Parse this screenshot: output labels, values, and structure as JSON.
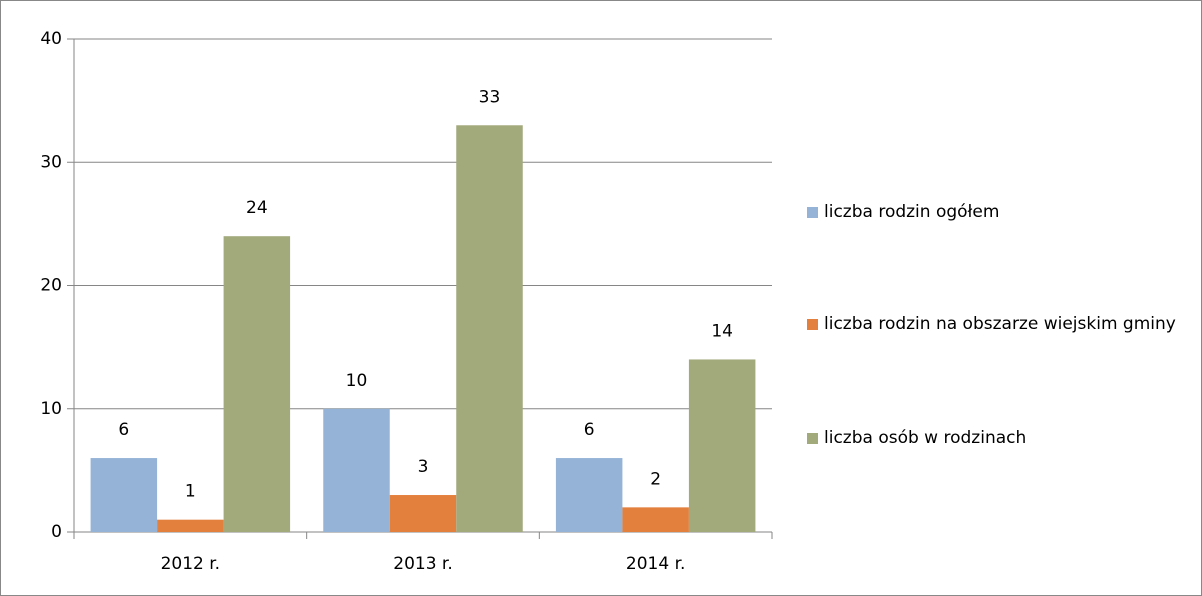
{
  "chart_data": {
    "type": "bar",
    "categories": [
      "2012 r.",
      "2013 r.",
      "2014 r."
    ],
    "series": [
      {
        "name": "liczba rodzin ogółem",
        "color": "#95b3d7",
        "values": [
          6,
          10,
          6
        ]
      },
      {
        "name": "liczba rodzin na obszarze wiejskim gminy",
        "color": "#e3803e",
        "values": [
          1,
          3,
          2
        ]
      },
      {
        "name": "liczba osób w rodzinach",
        "color": "#a2a97b",
        "values": [
          24,
          33,
          14
        ]
      }
    ],
    "ylim": [
      0,
      40
    ],
    "yticks": [
      0,
      10,
      20,
      30,
      40
    ],
    "grid": true,
    "legend": "right"
  }
}
